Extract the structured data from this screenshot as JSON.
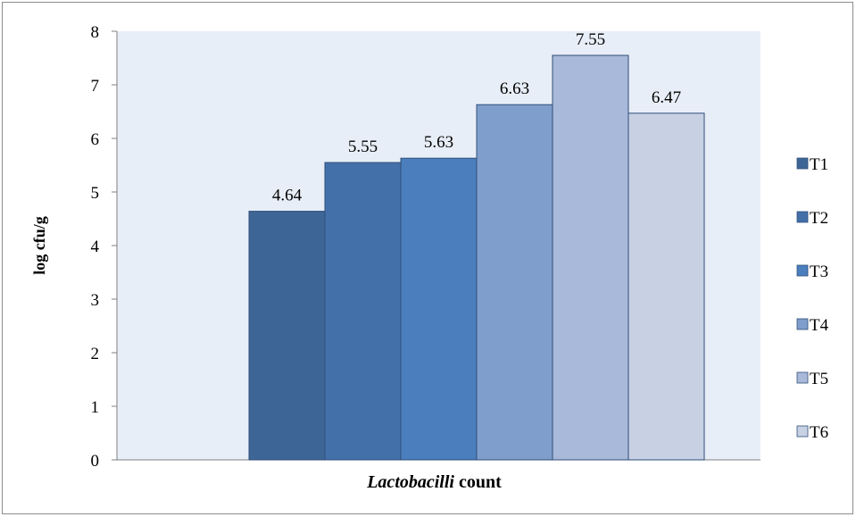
{
  "chart_data": {
    "type": "bar",
    "xlabel_italic": "Lactobacilli",
    "xlabel_rest": " count",
    "ylabel": "log cfu/g",
    "ylim": [
      0,
      8
    ],
    "yticks": [
      "0",
      "1",
      "2",
      "3",
      "4",
      "5",
      "6",
      "7",
      "8"
    ],
    "grid": false,
    "legend_position": "right",
    "plot_background": "#e8eef7",
    "series": [
      {
        "name": "T1",
        "value": 4.64,
        "label": "4.64",
        "color": "#3d6596"
      },
      {
        "name": "T2",
        "value": 5.55,
        "label": "5.55",
        "color": "#4470aa"
      },
      {
        "name": "T3",
        "value": 5.63,
        "label": "5.63",
        "color": "#4b7ebd"
      },
      {
        "name": "T4",
        "value": 6.63,
        "label": "6.63",
        "color": "#7f9ecb"
      },
      {
        "name": "T5",
        "value": 7.55,
        "label": "7.55",
        "color": "#a9b9d9"
      },
      {
        "name": "T6",
        "value": 6.47,
        "label": "6.47",
        "color": "#c7d1e3"
      }
    ]
  }
}
